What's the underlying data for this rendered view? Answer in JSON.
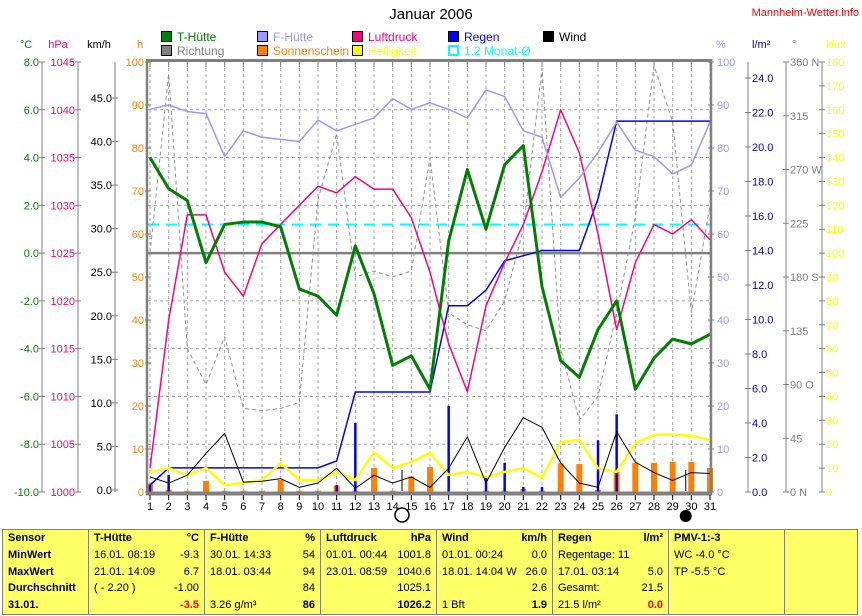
{
  "header": {
    "title": "Januar 2006",
    "source": "Mannheim-Wetter.info",
    "source_color": "#ff0000"
  },
  "legend": {
    "rows": [
      [
        {
          "label": "T-Hütte",
          "color": "#008000",
          "fill": true
        },
        {
          "label": "F-Hütte",
          "color": "#9999ff",
          "fill": true
        },
        {
          "label": "Luftdruck",
          "color": "#ff0080",
          "fill": true
        },
        {
          "label": "Regen",
          "color": "#0000ff",
          "fill": true
        },
        {
          "label": "Wind",
          "color": "#000000",
          "fill": true
        }
      ],
      [
        {
          "label": "Richtung",
          "color": "#808080",
          "fill": true
        },
        {
          "label": "Sonnenschein",
          "color": "#ff8000",
          "fill": true
        },
        {
          "label": "Helligkeit",
          "color": "#ffff00",
          "fill": true
        },
        {
          "label": "1.2 Monat-Ø",
          "color": "#00ffff",
          "fill": false
        }
      ]
    ]
  },
  "axes": {
    "left": [
      {
        "unit": "°C",
        "color": "#008000",
        "labels": [
          "8.0",
          "6.0",
          "4.0",
          "2.0",
          "0.0",
          "-2.0",
          "-4.0",
          "-6.0",
          "-8.0",
          "-10.0"
        ]
      },
      {
        "unit": "hPa",
        "color": "#ff0080",
        "labels": [
          "1045",
          "1040",
          "1035",
          "1030",
          "1025",
          "1020",
          "1015",
          "1010",
          "1005",
          "1000"
        ]
      },
      {
        "unit": "km/h",
        "color": "#000000",
        "labels": [
          "45.0",
          "40.0",
          "35.0",
          "30.0",
          "25.0",
          "20.0",
          "15.0",
          "10.0",
          "5.0",
          "0.0"
        ]
      },
      {
        "unit": "h",
        "color": "#ff8000",
        "labels": [
          "100",
          "90",
          "80",
          "70",
          "60",
          "50",
          "40",
          "30",
          "20",
          "10",
          "0"
        ]
      }
    ],
    "right": [
      {
        "unit": "%",
        "color": "#9999ff",
        "labels": [
          "100",
          "90",
          "80",
          "70",
          "60",
          "50",
          "40",
          "30",
          "20",
          "10",
          "0"
        ]
      },
      {
        "unit": "l/m²",
        "color": "#0000cc",
        "labels": [
          "24.0",
          "22.0",
          "20.0",
          "18.0",
          "16.0",
          "14.0",
          "12.0",
          "10.0",
          "8.0",
          "6.0",
          "4.0",
          "2.0",
          "0.0"
        ]
      },
      {
        "unit": "°",
        "color": "#808080",
        "labels": [
          "360 N",
          "315",
          "270 W",
          "225",
          "180 S",
          "135",
          "90 O",
          "45",
          "0 N"
        ]
      },
      {
        "unit": "klux",
        "color": "#ffff00",
        "labels": [
          "180",
          "170",
          "160",
          "150",
          "140",
          "130",
          "120",
          "110",
          "100",
          "90",
          "80",
          "70",
          "60",
          "50",
          "40",
          "30",
          "20",
          "10",
          "0"
        ]
      }
    ]
  },
  "chart_data": {
    "type": "line",
    "title": "Januar 2006",
    "x_labels": [
      "1",
      "2",
      "3",
      "4",
      "5",
      "6",
      "7",
      "8",
      "9",
      "10",
      "11",
      "12",
      "13",
      "14",
      "15",
      "16",
      "17",
      "18",
      "19",
      "20",
      "21",
      "22",
      "23",
      "24",
      "25",
      "26",
      "27",
      "28",
      "29",
      "30",
      "31"
    ],
    "axis_ranges": {
      "temp": [
        -10,
        8
      ],
      "hpa": [
        1000,
        1045
      ],
      "kmh": [
        0,
        45
      ],
      "h": [
        0,
        100
      ],
      "percent": [
        0,
        100
      ],
      "lm2": [
        0,
        24
      ],
      "deg": [
        0,
        360
      ],
      "klux": [
        0,
        180
      ]
    },
    "series": [
      {
        "name": "Richtung",
        "axis": "deg",
        "color": "#909090",
        "style": "dashed-line",
        "width": 1,
        "values": [
          200,
          350,
          120,
          90,
          130,
          70,
          68,
          70,
          75,
          245,
          300,
          180,
          185,
          180,
          185,
          280,
          150,
          140,
          135,
          160,
          220,
          355,
          120,
          60,
          80,
          150,
          230,
          357,
          310,
          150,
          240
        ]
      },
      {
        "name": "Sonnenschein",
        "axis": "h",
        "color": "#ff8000",
        "style": "bars",
        "width": 6,
        "values": [
          2.0,
          0.5,
          0.3,
          2.6,
          0.3,
          0.3,
          0.3,
          2.8,
          0.3,
          0.3,
          1.5,
          0.3,
          5.6,
          0.3,
          3.6,
          5.8,
          0,
          0,
          0.3,
          0.3,
          0.7,
          0.3,
          6.7,
          6.5,
          0.5,
          4.7,
          6.8,
          6.8,
          7.0,
          7.0,
          5.6
        ]
      },
      {
        "name": "Regen",
        "axis": "lm2",
        "color": "#0000ff",
        "style": "bars",
        "width": 2.5,
        "cumulative_line": true,
        "values": [
          0.4,
          1.0,
          0,
          0,
          0,
          0,
          0,
          0,
          0,
          0,
          0.4,
          4.0,
          0,
          0,
          0,
          0,
          5.0,
          0,
          0.9,
          1.7,
          0.3,
          0.3,
          0,
          0,
          3.0,
          4.5,
          0,
          0,
          0,
          0,
          0
        ]
      },
      {
        "name": "Helligkeit",
        "axis": "klux",
        "color": "#ffff00",
        "style": "line",
        "width": 2.5,
        "values": [
          8.4,
          10.0,
          7.1,
          10.0,
          2.9,
          3.8,
          5.0,
          12.1,
          5.0,
          5.0,
          8.4,
          5.0,
          16.7,
          10.0,
          12.6,
          16.3,
          7.1,
          8.4,
          6.3,
          8.4,
          10.0,
          5.9,
          20.9,
          21.8,
          10.0,
          8.4,
          20.5,
          23.9,
          24.1,
          23.5,
          21.8
        ]
      },
      {
        "name": "Wind",
        "axis": "kmh",
        "color": "#000000",
        "style": "line",
        "width": 1,
        "values": [
          1.5,
          0.8,
          1.7,
          4.2,
          6.5,
          0.9,
          1.0,
          1.3,
          0.3,
          0.8,
          2.5,
          0.2,
          1.7,
          0.8,
          1.5,
          0.3,
          2.5,
          6.1,
          0.8,
          4.9,
          8.3,
          7.2,
          3.1,
          0.8,
          0.3,
          6.7,
          3.2,
          2.0,
          1.1,
          2.0,
          1.9
        ]
      },
      {
        "name": "Luftdruck",
        "axis": "hpa",
        "color": "#ff0080",
        "style": "line",
        "width": 1.5,
        "values": [
          1002.5,
          1018,
          1029,
          1029,
          1023,
          1020.5,
          1026,
          1028,
          1030,
          1032,
          1031.3,
          1033,
          1031.7,
          1031.7,
          1028.7,
          1023,
          1015.5,
          1010.5,
          1019.5,
          1024,
          1028,
          1033.5,
          1040,
          1035.5,
          1027,
          1017,
          1024,
          1028,
          1027,
          1028.5,
          1026.4
        ]
      },
      {
        "name": "F-Hütte",
        "axis": "percent",
        "color": "#9999ff",
        "style": "line",
        "width": 1.5,
        "values": [
          89,
          90,
          88.5,
          88,
          78,
          84,
          82.5,
          82,
          81.5,
          86.5,
          84,
          85.5,
          87,
          91.5,
          89,
          90.5,
          89,
          87,
          93.5,
          92,
          84,
          82.5,
          68.5,
          73,
          79,
          86,
          79.5,
          78,
          74,
          76,
          86
        ]
      },
      {
        "name": "T-Hütte",
        "axis": "temp",
        "color": "#008000",
        "style": "line",
        "width": 3,
        "values": [
          4.0,
          2.7,
          2.2,
          -0.4,
          1.2,
          1.3,
          1.3,
          1.1,
          -1.5,
          -1.8,
          -2.6,
          0.3,
          -1.7,
          -4.7,
          -4.3,
          -5.7,
          0.5,
          3.5,
          1.0,
          3.7,
          4.5,
          -1.4,
          -4.5,
          -5.2,
          -3.2,
          -2.0,
          -5.7,
          -4.4,
          -3.6,
          -3.8,
          -3.4
        ]
      }
    ],
    "reference_lines": [
      {
        "name": "1.2 Monat-Ø",
        "axis": "temp",
        "value": 1.2,
        "color": "#00ffff",
        "style": "dashed",
        "width": 2
      },
      {
        "name": "Null-Grad-Linie",
        "axis": "temp",
        "value": 0.0,
        "color": "#808080",
        "style": "solid",
        "width": 2.5
      }
    ],
    "moon_markers": [
      {
        "day": 14.5,
        "phase": "full"
      },
      {
        "day": 29.7,
        "phase": "new"
      }
    ]
  },
  "table": {
    "bg": "#ffff66",
    "row_labels": [
      "Sensor",
      "MinWert",
      "MaxWert",
      "Durchschnitt",
      "31.01."
    ],
    "columns": [
      {
        "header": "T-Hütte",
        "unit": "°C",
        "rows": [
          [
            "16.01.  08:19",
            "-9.3"
          ],
          [
            "21.01.  14:09",
            "6.7"
          ],
          [
            "( - 2.20 )",
            "-1.00"
          ],
          [
            "",
            "-3.5"
          ]
        ],
        "red_last": true
      },
      {
        "header": "F-Hütte",
        "unit": "%",
        "rows": [
          [
            "30.01.  14:33",
            "54"
          ],
          [
            "18.01.  03:44",
            "94"
          ],
          [
            "",
            "84"
          ],
          [
            "3.26 g/m³",
            "86"
          ]
        ],
        "red_last": false
      },
      {
        "header": "Luftdruck",
        "unit": "hPa",
        "rows": [
          [
            "01.01.  00:44",
            "1001.8"
          ],
          [
            "23.01.  08:59",
            "1040.6"
          ],
          [
            "",
            "1025.1"
          ],
          [
            "",
            "1026.2"
          ]
        ],
        "red_last": false
      },
      {
        "header": "Wind",
        "unit": "km/h",
        "rows": [
          [
            "01.01.  00:24",
            "0.0"
          ],
          [
            "18.01.  14:04 W",
            "26.0"
          ],
          [
            "",
            "2.6"
          ],
          [
            "1 Bft",
            "1.9"
          ]
        ],
        "red_last": false
      },
      {
        "header": "Regen",
        "unit": "l/m²",
        "rows": [
          [
            "Regentage: 11",
            ""
          ],
          [
            "17.01.  03:14",
            "5.0"
          ],
          [
            "Gesamt:",
            "21.5"
          ],
          [
            "21.5 l/m²",
            "0.0"
          ]
        ],
        "red_last": true
      },
      {
        "header": "PMV-1:-3",
        "unit": "",
        "rows": [
          [
            "WC -4.0 °C",
            ""
          ],
          [
            "TP -5.5 °C",
            ""
          ],
          [
            "",
            ""
          ],
          [
            "",
            ""
          ]
        ],
        "red_last": false
      },
      {
        "header": "",
        "unit": "",
        "rows": [
          [
            "",
            ""
          ],
          [
            "",
            ""
          ],
          [
            "",
            ""
          ],
          [
            "",
            ""
          ]
        ],
        "red_last": false
      }
    ]
  }
}
